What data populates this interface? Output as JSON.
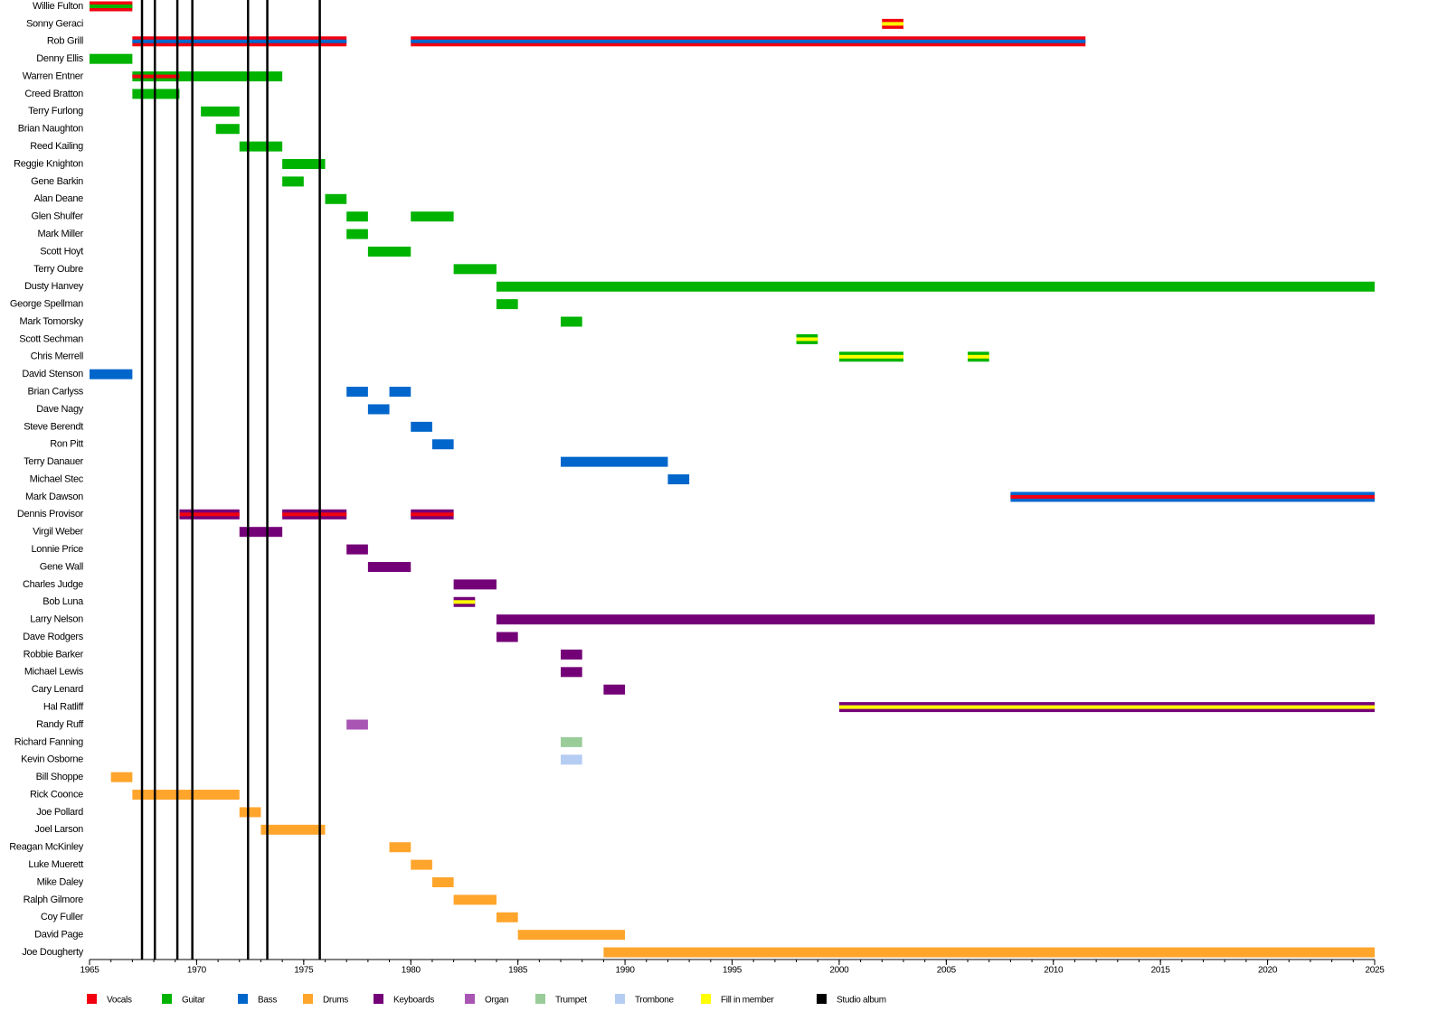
{
  "chart_data": {
    "type": "timeline",
    "xlim": [
      1965,
      2025
    ],
    "xticks": [
      1965,
      1970,
      1975,
      1980,
      1985,
      1990,
      1995,
      2000,
      2005,
      2010,
      2015,
      2020,
      2025
    ],
    "albums": [
      1967.45,
      1968.05,
      1969.1,
      1969.8,
      1972.4,
      1973.3,
      1975.75
    ],
    "legend": [
      {
        "name": "Vocals",
        "color": "#f2000f"
      },
      {
        "name": "Guitar",
        "color": "#00b300"
      },
      {
        "name": "Bass",
        "color": "#0066cc"
      },
      {
        "name": "Drums",
        "color": "#ffa52c"
      },
      {
        "name": "Keyboards",
        "color": "#740078"
      },
      {
        "name": "Organ",
        "color": "#a855b4"
      },
      {
        "name": "Trumpet",
        "color": "#99cc99"
      },
      {
        "name": "Trombone",
        "color": "#b5cdf2"
      },
      {
        "name": "Fill in member",
        "color": "#ffff00"
      },
      {
        "name": "Studio album",
        "color": "#000000"
      }
    ],
    "members": [
      {
        "name": "Willie Fulton",
        "segments": [
          {
            "start": 1965,
            "end": 1967,
            "role": "Vocals",
            "inner": "Guitar"
          }
        ]
      },
      {
        "name": "Sonny Geraci",
        "segments": [
          {
            "start": 2002,
            "end": 2003,
            "role": "Vocals",
            "inner": "Fill in member"
          }
        ]
      },
      {
        "name": "Rob Grill",
        "segments": [
          {
            "start": 1967,
            "end": 1977,
            "role": "Vocals",
            "inner": "Bass"
          },
          {
            "start": 1980,
            "end": 2011.5,
            "role": "Vocals",
            "inner": "Bass"
          }
        ]
      },
      {
        "name": "Denny Ellis",
        "segments": [
          {
            "start": 1965,
            "end": 1967,
            "role": "Guitar"
          }
        ]
      },
      {
        "name": "Warren Entner",
        "segments": [
          {
            "start": 1967,
            "end": 1969.2,
            "role": "Guitar",
            "inner": "Vocals"
          },
          {
            "start": 1969.2,
            "end": 1974,
            "role": "Guitar"
          }
        ]
      },
      {
        "name": "Creed Bratton",
        "segments": [
          {
            "start": 1967,
            "end": 1969.2,
            "role": "Guitar"
          }
        ]
      },
      {
        "name": "Terry Furlong",
        "segments": [
          {
            "start": 1970.2,
            "end": 1972,
            "role": "Guitar"
          }
        ]
      },
      {
        "name": "Brian Naughton",
        "segments": [
          {
            "start": 1970.9,
            "end": 1972,
            "role": "Guitar"
          }
        ]
      },
      {
        "name": "Reed Kailing",
        "segments": [
          {
            "start": 1972,
            "end": 1974,
            "role": "Guitar"
          }
        ]
      },
      {
        "name": "Reggie Knighton",
        "segments": [
          {
            "start": 1974,
            "end": 1976,
            "role": "Guitar"
          }
        ]
      },
      {
        "name": "Gene Barkin",
        "segments": [
          {
            "start": 1974,
            "end": 1975,
            "role": "Guitar"
          }
        ]
      },
      {
        "name": "Alan Deane",
        "segments": [
          {
            "start": 1976,
            "end": 1977,
            "role": "Guitar"
          }
        ]
      },
      {
        "name": "Glen Shulfer",
        "segments": [
          {
            "start": 1977,
            "end": 1978,
            "role": "Guitar"
          },
          {
            "start": 1980,
            "end": 1982,
            "role": "Guitar"
          }
        ]
      },
      {
        "name": "Mark Miller",
        "segments": [
          {
            "start": 1977,
            "end": 1978,
            "role": "Guitar"
          }
        ]
      },
      {
        "name": "Scott Hoyt",
        "segments": [
          {
            "start": 1978,
            "end": 1980,
            "role": "Guitar"
          }
        ]
      },
      {
        "name": "Terry Oubre",
        "segments": [
          {
            "start": 1982,
            "end": 1984,
            "role": "Guitar"
          }
        ]
      },
      {
        "name": "Dusty Hanvey",
        "segments": [
          {
            "start": 1984,
            "end": 2025,
            "role": "Guitar"
          }
        ]
      },
      {
        "name": "George Spellman",
        "segments": [
          {
            "start": 1984,
            "end": 1985,
            "role": "Guitar"
          }
        ]
      },
      {
        "name": "Mark Tomorsky",
        "segments": [
          {
            "start": 1987,
            "end": 1988,
            "role": "Guitar"
          }
        ]
      },
      {
        "name": "Scott Sechman",
        "segments": [
          {
            "start": 1998,
            "end": 1999,
            "role": "Guitar",
            "inner": "Fill in member"
          }
        ]
      },
      {
        "name": "Chris Merrell",
        "segments": [
          {
            "start": 2000,
            "end": 2003,
            "role": "Guitar",
            "inner": "Fill in member"
          },
          {
            "start": 2006,
            "end": 2007,
            "role": "Guitar",
            "inner": "Fill in member"
          }
        ]
      },
      {
        "name": "David Stenson",
        "segments": [
          {
            "start": 1965,
            "end": 1967,
            "role": "Bass"
          }
        ]
      },
      {
        "name": "Brian Carlyss",
        "segments": [
          {
            "start": 1977,
            "end": 1978,
            "role": "Bass"
          },
          {
            "start": 1979,
            "end": 1980,
            "role": "Bass"
          }
        ]
      },
      {
        "name": "Dave Nagy",
        "segments": [
          {
            "start": 1978,
            "end": 1979,
            "role": "Bass"
          }
        ]
      },
      {
        "name": "Steve Berendt",
        "segments": [
          {
            "start": 1980,
            "end": 1981,
            "role": "Bass"
          }
        ]
      },
      {
        "name": "Ron Pitt",
        "segments": [
          {
            "start": 1981,
            "end": 1982,
            "role": "Bass"
          }
        ]
      },
      {
        "name": "Terry Danauer",
        "segments": [
          {
            "start": 1987,
            "end": 1992,
            "role": "Bass"
          }
        ]
      },
      {
        "name": "Michael Stec",
        "segments": [
          {
            "start": 1992,
            "end": 1993,
            "role": "Bass"
          }
        ]
      },
      {
        "name": "Mark Dawson",
        "segments": [
          {
            "start": 2008,
            "end": 2025,
            "role": "Bass",
            "inner": "Vocals"
          }
        ]
      },
      {
        "name": "Dennis Provisor",
        "segments": [
          {
            "start": 1969.2,
            "end": 1972,
            "role": "Keyboards",
            "inner": "Vocals"
          },
          {
            "start": 1974,
            "end": 1977,
            "role": "Keyboards",
            "inner": "Vocals"
          },
          {
            "start": 1980,
            "end": 1982,
            "role": "Keyboards",
            "inner": "Vocals"
          }
        ]
      },
      {
        "name": "Virgil Weber",
        "segments": [
          {
            "start": 1972,
            "end": 1974,
            "role": "Keyboards"
          }
        ]
      },
      {
        "name": "Lonnie Price",
        "segments": [
          {
            "start": 1977,
            "end": 1978,
            "role": "Keyboards"
          }
        ]
      },
      {
        "name": "Gene Wall",
        "segments": [
          {
            "start": 1978,
            "end": 1980,
            "role": "Keyboards"
          }
        ]
      },
      {
        "name": "Charles Judge",
        "segments": [
          {
            "start": 1982,
            "end": 1984,
            "role": "Keyboards"
          }
        ]
      },
      {
        "name": "Bob Luna",
        "segments": [
          {
            "start": 1982,
            "end": 1983,
            "role": "Keyboards",
            "inner": "Fill in member"
          }
        ]
      },
      {
        "name": "Larry Nelson",
        "segments": [
          {
            "start": 1984,
            "end": 2025,
            "role": "Keyboards"
          }
        ]
      },
      {
        "name": "Dave Rodgers",
        "segments": [
          {
            "start": 1984,
            "end": 1985,
            "role": "Keyboards"
          }
        ]
      },
      {
        "name": "Robbie Barker",
        "segments": [
          {
            "start": 1987,
            "end": 1988,
            "role": "Keyboards"
          }
        ]
      },
      {
        "name": "Michael Lewis",
        "segments": [
          {
            "start": 1987,
            "end": 1988,
            "role": "Keyboards"
          }
        ]
      },
      {
        "name": "Cary Lenard",
        "segments": [
          {
            "start": 1989,
            "end": 1990,
            "role": "Keyboards"
          }
        ]
      },
      {
        "name": "Hal Ratliff",
        "segments": [
          {
            "start": 2000,
            "end": 2025,
            "role": "Keyboards",
            "inner": "Fill in member"
          }
        ]
      },
      {
        "name": "Randy Ruff",
        "segments": [
          {
            "start": 1977,
            "end": 1978,
            "role": "Organ"
          }
        ]
      },
      {
        "name": "Richard Fanning",
        "segments": [
          {
            "start": 1987,
            "end": 1988,
            "role": "Trumpet"
          }
        ]
      },
      {
        "name": "Kevin Osborne",
        "segments": [
          {
            "start": 1987,
            "end": 1988,
            "role": "Trombone"
          }
        ]
      },
      {
        "name": "Bill Shoppe",
        "segments": [
          {
            "start": 1966,
            "end": 1967,
            "role": "Drums"
          }
        ]
      },
      {
        "name": "Rick Coonce",
        "segments": [
          {
            "start": 1967,
            "end": 1972,
            "role": "Drums"
          }
        ]
      },
      {
        "name": "Joe Pollard",
        "segments": [
          {
            "start": 1972,
            "end": 1973,
            "role": "Drums"
          }
        ]
      },
      {
        "name": "Joel Larson",
        "segments": [
          {
            "start": 1973,
            "end": 1976,
            "role": "Drums"
          }
        ]
      },
      {
        "name": "Reagan McKinley",
        "segments": [
          {
            "start": 1979,
            "end": 1980,
            "role": "Drums"
          }
        ]
      },
      {
        "name": "Luke Muerett",
        "segments": [
          {
            "start": 1980,
            "end": 1981,
            "role": "Drums"
          }
        ]
      },
      {
        "name": "Mike Daley",
        "segments": [
          {
            "start": 1981,
            "end": 1982,
            "role": "Drums"
          }
        ]
      },
      {
        "name": "Ralph Gilmore",
        "segments": [
          {
            "start": 1982,
            "end": 1984,
            "role": "Drums"
          }
        ]
      },
      {
        "name": "Coy Fuller",
        "segments": [
          {
            "start": 1984,
            "end": 1985,
            "role": "Drums"
          }
        ]
      },
      {
        "name": "David Page",
        "segments": [
          {
            "start": 1985,
            "end": 1990,
            "role": "Drums"
          }
        ]
      },
      {
        "name": "Joe Dougherty",
        "segments": [
          {
            "start": 1989,
            "end": 2025,
            "role": "Drums"
          }
        ]
      }
    ]
  }
}
